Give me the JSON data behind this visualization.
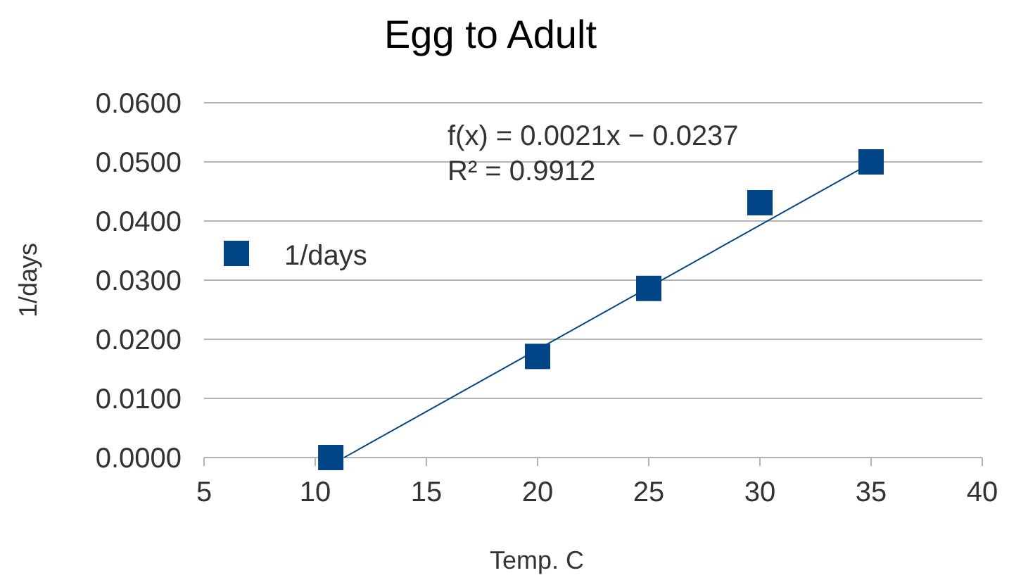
{
  "chart_data": {
    "type": "scatter",
    "title": "Egg to Adult",
    "xlabel": "Temp. C",
    "ylabel": "1/days",
    "xlim": [
      5,
      40
    ],
    "xticks": [
      5,
      10,
      15,
      20,
      25,
      30,
      35,
      40
    ],
    "ylim": [
      0,
      0.06
    ],
    "yticks": [
      {
        "value": 0,
        "label": "0.0000"
      },
      {
        "value": 0.01,
        "label": "0.0100"
      },
      {
        "value": 0.02,
        "label": "0.0200"
      },
      {
        "value": 0.03,
        "label": "0.0300"
      },
      {
        "value": 0.04,
        "label": "0.0400"
      },
      {
        "value": 0.05,
        "label": "0.0500"
      },
      {
        "value": 0.06,
        "label": "0.0600"
      }
    ],
    "grid": "y",
    "legend": "left",
    "series": [
      {
        "name": "1/days",
        "color": "#004586",
        "marker": "square",
        "x": [
          10.7,
          20,
          25,
          30,
          35
        ],
        "values": [
          0.0,
          0.0171,
          0.0286,
          0.0431,
          0.05
        ]
      },
      {
        "type": "line",
        "marker": "none",
        "color": "#004586",
        "x": [
          11.3,
          35
        ],
        "values": [
          0,
          0.0498
        ]
      }
    ],
    "annotations": [
      "f(x) = 0.0021x − 0.0237",
      "R² = 0.9912"
    ]
  }
}
